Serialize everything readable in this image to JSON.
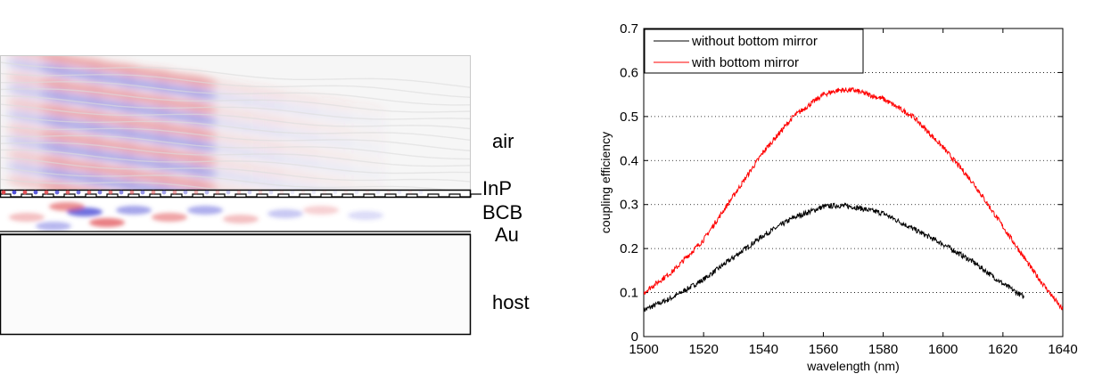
{
  "simulation": {
    "layers": {
      "air": "air",
      "inp": "InP",
      "bcb": "BCB",
      "au": "Au",
      "host": "host"
    },
    "colors": {
      "positive": "#e0474c",
      "negative": "#4a4ad6"
    }
  },
  "chart_data": {
    "type": "line",
    "title": "",
    "xlabel": "wavelength (nm)",
    "ylabel": "coupling efficiency",
    "xlim": [
      1500,
      1640
    ],
    "ylim": [
      0,
      0.7
    ],
    "xticks": [
      1500,
      1520,
      1540,
      1560,
      1580,
      1600,
      1620,
      1640
    ],
    "xtick_labels": [
      "1500",
      "1520",
      "1540",
      "1560",
      "1580",
      "1600",
      "1620",
      "1640"
    ],
    "yticks": [
      0,
      0.1,
      0.2,
      0.3,
      0.4,
      0.5,
      0.6,
      0.7
    ],
    "ytick_labels": [
      "0",
      "0.1",
      "0.2",
      "0.3",
      "0.4",
      "0.5",
      "0.6",
      "0.7"
    ],
    "grid": "horizontal dotted",
    "legend_position": "top-left",
    "series": [
      {
        "name": "without bottom mirror",
        "color": "#000000",
        "x": [
          1500,
          1510,
          1520,
          1530,
          1540,
          1550,
          1560,
          1565,
          1570,
          1580,
          1590,
          1600,
          1610,
          1620,
          1627
        ],
        "y": [
          0.06,
          0.09,
          0.13,
          0.18,
          0.23,
          0.27,
          0.295,
          0.298,
          0.295,
          0.28,
          0.245,
          0.21,
          0.17,
          0.12,
          0.09
        ]
      },
      {
        "name": "with bottom mirror",
        "color": "#ff0000",
        "x": [
          1500,
          1510,
          1520,
          1530,
          1540,
          1550,
          1560,
          1565,
          1570,
          1580,
          1590,
          1600,
          1610,
          1620,
          1630,
          1640
        ],
        "y": [
          0.1,
          0.15,
          0.22,
          0.32,
          0.42,
          0.5,
          0.55,
          0.56,
          0.56,
          0.54,
          0.5,
          0.43,
          0.35,
          0.25,
          0.15,
          0.06
        ]
      }
    ]
  }
}
